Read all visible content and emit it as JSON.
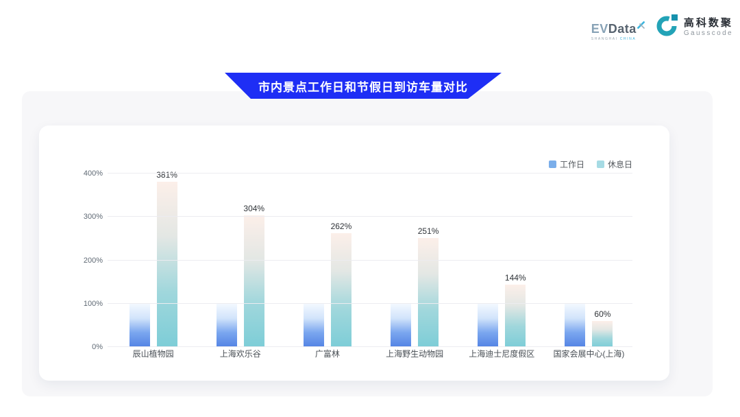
{
  "brand": {
    "evdata": {
      "wordmark_ev": "EV",
      "wordmark_rest": "Data",
      "subtext_left": "SHANGHAI",
      "subtext_right": "CHINA",
      "accent_color": "#3fb5de"
    },
    "gausscode": {
      "name_cn": "高科数聚",
      "name_en": "Gausscode",
      "icon_color": "#23a3b7",
      "icon_square_color": "#1691ad"
    }
  },
  "banner": {
    "title": "市内景点工作日和节假日到访车量对比",
    "background_color": "#1e2ef5"
  },
  "chart_data": {
    "type": "bar",
    "title": "市内景点工作日和节假日到访车量对比",
    "categories": [
      "辰山植物园",
      "上海欢乐谷",
      "广富林",
      "上海野生动物园",
      "上海迪士尼度假区",
      "国家会展中心(上海)"
    ],
    "series": [
      {
        "key": "weekday",
        "name": "工作日",
        "values": [
          100,
          100,
          100,
          100,
          100,
          100
        ],
        "value_labels": null,
        "legend_color": "#7aaeea",
        "gradient": [
          "#f3f9ff",
          "#d2e4fb",
          "#7aa6ef",
          "#5484e4"
        ]
      },
      {
        "key": "weekend",
        "name": "休息日",
        "values": [
          381,
          304,
          262,
          251,
          144,
          60
        ],
        "value_labels": [
          "381%",
          "304%",
          "262%",
          "251%",
          "144%",
          "60%"
        ],
        "legend_color": "#a6dbe4",
        "gradient": [
          "#fcefe9",
          "#e3e7e4",
          "#a0d7dc",
          "#7dcdd7"
        ]
      }
    ],
    "xlabel": "",
    "ylabel": "",
    "ylim": [
      0,
      400
    ],
    "yticks": [
      {
        "value": 0,
        "label": "0%"
      },
      {
        "value": 100,
        "label": "100%"
      },
      {
        "value": 200,
        "label": "200%"
      },
      {
        "value": 300,
        "label": "300%"
      },
      {
        "value": 400,
        "label": "400%"
      }
    ],
    "grid": true,
    "legend_position": "top-right"
  }
}
